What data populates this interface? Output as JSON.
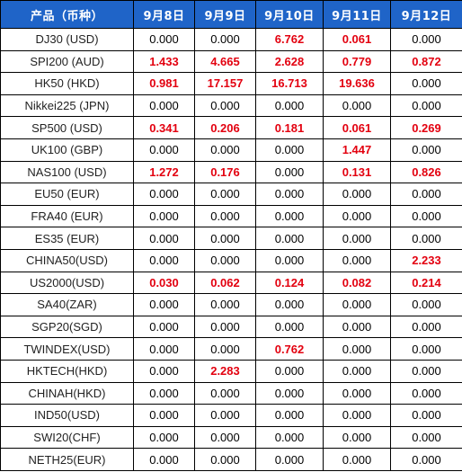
{
  "table": {
    "headers": [
      "产品（币种）",
      "9月8日",
      "9月9日",
      "9月10日",
      "9月11日",
      "9月12日"
    ],
    "rows": [
      {
        "product": "DJ30 (USD)",
        "values": [
          "0.000",
          "0.000",
          "6.762",
          "0.061",
          "0.000"
        ]
      },
      {
        "product": "SPI200 (AUD)",
        "values": [
          "1.433",
          "4.665",
          "2.628",
          "0.779",
          "0.872"
        ]
      },
      {
        "product": "HK50 (HKD)",
        "values": [
          "0.981",
          "17.157",
          "16.713",
          "19.636",
          "0.000"
        ]
      },
      {
        "product": "Nikkei225 (JPN)",
        "values": [
          "0.000",
          "0.000",
          "0.000",
          "0.000",
          "0.000"
        ]
      },
      {
        "product": "SP500 (USD)",
        "values": [
          "0.341",
          "0.206",
          "0.181",
          "0.061",
          "0.269"
        ]
      },
      {
        "product": "UK100 (GBP)",
        "values": [
          "0.000",
          "0.000",
          "0.000",
          "1.447",
          "0.000"
        ]
      },
      {
        "product": "NAS100 (USD)",
        "values": [
          "1.272",
          "0.176",
          "0.000",
          "0.131",
          "0.826"
        ]
      },
      {
        "product": "EU50 (EUR)",
        "values": [
          "0.000",
          "0.000",
          "0.000",
          "0.000",
          "0.000"
        ]
      },
      {
        "product": "FRA40 (EUR)",
        "values": [
          "0.000",
          "0.000",
          "0.000",
          "0.000",
          "0.000"
        ]
      },
      {
        "product": "ES35 (EUR)",
        "values": [
          "0.000",
          "0.000",
          "0.000",
          "0.000",
          "0.000"
        ]
      },
      {
        "product": "CHINA50(USD)",
        "values": [
          "0.000",
          "0.000",
          "0.000",
          "0.000",
          "2.233"
        ]
      },
      {
        "product": "US2000(USD)",
        "values": [
          "0.030",
          "0.062",
          "0.124",
          "0.082",
          "0.214"
        ]
      },
      {
        "product": "SA40(ZAR)",
        "values": [
          "0.000",
          "0.000",
          "0.000",
          "0.000",
          "0.000"
        ]
      },
      {
        "product": "SGP20(SGD)",
        "values": [
          "0.000",
          "0.000",
          "0.000",
          "0.000",
          "0.000"
        ]
      },
      {
        "product": "TWINDEX(USD)",
        "values": [
          "0.000",
          "0.000",
          "0.762",
          "0.000",
          "0.000"
        ]
      },
      {
        "product": "HKTECH(HKD)",
        "values": [
          "0.000",
          "2.283",
          "0.000",
          "0.000",
          "0.000"
        ]
      },
      {
        "product": "CHINAH(HKD)",
        "values": [
          "0.000",
          "0.000",
          "0.000",
          "0.000",
          "0.000"
        ]
      },
      {
        "product": "IND50(USD)",
        "values": [
          "0.000",
          "0.000",
          "0.000",
          "0.000",
          "0.000"
        ]
      },
      {
        "product": "SWI20(CHF)",
        "values": [
          "0.000",
          "0.000",
          "0.000",
          "0.000",
          "0.000"
        ]
      },
      {
        "product": "NETH25(EUR)",
        "values": [
          "0.000",
          "0.000",
          "0.000",
          "0.000",
          "0.000"
        ]
      }
    ]
  },
  "colors": {
    "header_bg": "#1f64c8",
    "header_text": "#ffffff",
    "positive_value": "#e3000f",
    "zero_value": "#000000",
    "border": "#000000"
  }
}
